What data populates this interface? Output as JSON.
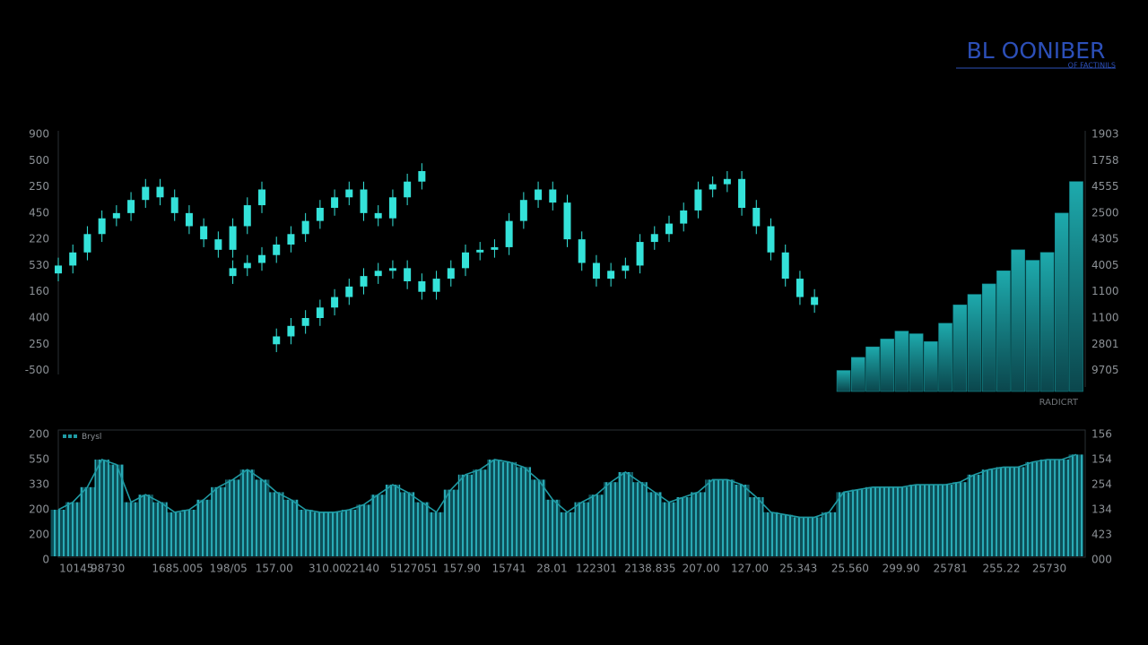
{
  "header": {
    "logo": "BL OONIBER",
    "tagline": "OF FACTINILS"
  },
  "chart_data": [
    {
      "type": "candlestick",
      "color": "#34e2d9",
      "annotation": "RADICRT",
      "xlim": [
        0,
        140
      ],
      "ylim": [
        -0.8,
        9
      ],
      "y2lim": [
        -0.8,
        9
      ],
      "yticks": [
        {
          "value": 9,
          "label": "900"
        },
        {
          "value": 8,
          "label": "500"
        },
        {
          "value": 7,
          "label": "250"
        },
        {
          "value": 6,
          "label": "450"
        },
        {
          "value": 5,
          "label": "220"
        },
        {
          "value": 4,
          "label": "530"
        },
        {
          "value": 3,
          "label": "160"
        },
        {
          "value": 2,
          "label": "400"
        },
        {
          "value": 1,
          "label": "250"
        },
        {
          "value": 0,
          "label": "-500"
        }
      ],
      "y2ticks": [
        {
          "value": 9,
          "label": "1903"
        },
        {
          "value": 8,
          "label": "1758"
        },
        {
          "value": 7,
          "label": "4555"
        },
        {
          "value": 6,
          "label": "2500"
        },
        {
          "value": 5,
          "label": "4305"
        },
        {
          "value": 4,
          "label": "4005"
        },
        {
          "value": 3,
          "label": "1100"
        },
        {
          "value": 2,
          "label": "1100"
        },
        {
          "value": 1,
          "label": "2801"
        },
        {
          "value": 0,
          "label": "9705"
        }
      ],
      "bars": {
        "color": "#138a90",
        "x": [
          108,
          110,
          112,
          114,
          116,
          118,
          120,
          122,
          124,
          126,
          128,
          130,
          132,
          134,
          136,
          138,
          140
        ],
        "values": [
          0.0,
          0.5,
          0.9,
          1.2,
          1.5,
          1.4,
          1.1,
          1.8,
          2.5,
          2.9,
          3.3,
          3.8,
          4.6,
          4.2,
          4.5,
          6.0,
          7.2
        ]
      },
      "series": [
        {
          "x": [
            0,
            2,
            4,
            6,
            8,
            10,
            12,
            14,
            16,
            18,
            20,
            22,
            24,
            26,
            28
          ],
          "open": [
            3.7,
            4.0,
            4.5,
            5.2,
            5.8,
            6.0,
            6.5,
            7.0,
            6.6,
            6.0,
            5.5,
            5.0,
            4.6,
            5.5,
            6.3
          ],
          "high": [
            4.3,
            4.8,
            5.5,
            6.1,
            6.3,
            6.8,
            7.3,
            7.3,
            6.9,
            6.3,
            5.8,
            5.3,
            5.8,
            6.6,
            7.2
          ],
          "low": [
            3.4,
            3.7,
            4.2,
            4.9,
            5.5,
            5.7,
            6.2,
            6.3,
            5.7,
            5.2,
            4.7,
            4.3,
            4.3,
            5.2,
            6.0
          ],
          "close": [
            4.0,
            4.5,
            5.2,
            5.8,
            6.0,
            6.5,
            7.0,
            6.6,
            6.0,
            5.5,
            5.0,
            4.6,
            5.5,
            6.3,
            6.9
          ]
        },
        {
          "x": [
            24,
            26,
            28,
            30,
            32,
            34,
            36,
            38,
            40,
            42,
            44,
            46,
            48,
            50
          ],
          "open": [
            3.6,
            3.9,
            4.1,
            4.4,
            4.8,
            5.2,
            5.7,
            6.2,
            6.6,
            6.9,
            6.0,
            5.8,
            6.6,
            7.2
          ],
          "high": [
            4.2,
            4.4,
            4.7,
            5.1,
            5.5,
            6.0,
            6.5,
            6.9,
            7.2,
            7.2,
            6.3,
            6.9,
            7.5,
            7.9
          ],
          "low": [
            3.3,
            3.6,
            3.8,
            4.1,
            4.5,
            4.9,
            5.4,
            5.9,
            6.3,
            5.7,
            5.5,
            5.5,
            6.3,
            6.9
          ],
          "close": [
            3.9,
            4.1,
            4.4,
            4.8,
            5.2,
            5.7,
            6.2,
            6.6,
            6.9,
            6.0,
            5.8,
            6.6,
            7.2,
            7.6
          ]
        },
        {
          "x": [
            30,
            32,
            34,
            36,
            38,
            40,
            42,
            44,
            46,
            48,
            50,
            52,
            54,
            56,
            58,
            60,
            62,
            64,
            66,
            68,
            70,
            72,
            74,
            76,
            78,
            80,
            82,
            84,
            86,
            88,
            90,
            92,
            94,
            96,
            98,
            100,
            102,
            104
          ],
          "open": [
            1.0,
            1.3,
            1.7,
            2.0,
            2.4,
            2.8,
            3.2,
            3.6,
            3.8,
            3.9,
            3.4,
            3.0,
            3.5,
            3.9,
            4.5,
            4.6,
            4.7,
            5.7,
            6.5,
            6.9,
            6.4,
            5.0,
            4.1,
            3.5,
            3.8,
            4.0,
            4.9,
            5.2,
            5.6,
            6.1,
            6.9,
            7.1,
            7.3,
            6.2,
            5.5,
            4.5,
            3.5,
            2.8
          ],
          "high": [
            1.6,
            2.0,
            2.3,
            2.7,
            3.1,
            3.5,
            3.9,
            4.1,
            4.2,
            4.2,
            3.7,
            3.8,
            4.2,
            4.8,
            4.9,
            5.0,
            6.0,
            6.8,
            7.2,
            7.2,
            6.7,
            5.3,
            4.4,
            4.1,
            4.3,
            5.2,
            5.5,
            5.9,
            6.4,
            7.2,
            7.4,
            7.6,
            7.6,
            6.5,
            5.8,
            4.8,
            3.8,
            3.1
          ],
          "low": [
            0.7,
            1.0,
            1.4,
            1.7,
            2.1,
            2.5,
            2.9,
            3.3,
            3.5,
            3.1,
            2.7,
            2.7,
            3.2,
            3.6,
            4.2,
            4.3,
            4.4,
            5.4,
            6.2,
            6.1,
            4.7,
            3.8,
            3.2,
            3.2,
            3.5,
            3.7,
            4.6,
            4.9,
            5.3,
            5.8,
            6.6,
            6.8,
            5.9,
            5.2,
            4.2,
            3.2,
            2.5,
            2.2
          ],
          "close": [
            1.3,
            1.7,
            2.0,
            2.4,
            2.8,
            3.2,
            3.6,
            3.8,
            3.9,
            3.4,
            3.0,
            3.5,
            3.9,
            4.5,
            4.6,
            4.7,
            5.7,
            6.5,
            6.9,
            6.4,
            5.0,
            4.1,
            3.5,
            3.8,
            4.0,
            4.9,
            5.2,
            5.6,
            6.1,
            6.9,
            7.1,
            7.3,
            6.2,
            5.5,
            4.5,
            3.5,
            2.8,
            2.5
          ]
        }
      ]
    },
    {
      "type": "bar",
      "xlim": [
        0,
        140
      ],
      "ylim": [
        0,
        5
      ],
      "y2lim": [
        0,
        5
      ],
      "yticks": [
        {
          "value": 5,
          "label": "200"
        },
        {
          "value": 4,
          "label": "550"
        },
        {
          "value": 3,
          "label": "330"
        },
        {
          "value": 2,
          "label": "200"
        },
        {
          "value": 1,
          "label": "200"
        },
        0
      ],
      "y2ticks": [
        {
          "value": 5,
          "label": "156"
        },
        {
          "value": 4,
          "label": "154"
        },
        {
          "value": 3,
          "label": "254"
        },
        {
          "value": 2,
          "label": "134"
        },
        {
          "value": 1,
          "label": "423"
        },
        {
          "value": 0,
          "label": "000"
        }
      ],
      "xticks": [
        {
          "value": 2.5,
          "label": "10145"
        },
        {
          "value": 6.8,
          "label": "98730"
        },
        {
          "value": 16.4,
          "label": "1685.005"
        },
        {
          "value": 23.4,
          "label": "198/05"
        },
        {
          "value": 29.7,
          "label": "157.00"
        },
        {
          "value": 37.0,
          "label": "310.00"
        },
        {
          "value": 41.8,
          "label": "22140"
        },
        {
          "value": 48.9,
          "label": "5127051"
        },
        {
          "value": 55.5,
          "label": "157.90"
        },
        {
          "value": 62.0,
          "label": "15741"
        },
        {
          "value": 67.9,
          "label": "28.01"
        },
        {
          "value": 74.0,
          "label": "122301"
        },
        {
          "value": 81.4,
          "label": "2138.835"
        },
        {
          "value": 88.4,
          "label": "207.00"
        },
        {
          "value": 95.1,
          "label": "127.00"
        },
        {
          "value": 101.8,
          "label": "25.343"
        },
        {
          "value": 108.9,
          "label": "25.560"
        },
        {
          "value": 115.9,
          "label": "299.90"
        },
        {
          "value": 122.7,
          "label": "25781"
        },
        {
          "value": 129.7,
          "label": "255.22"
        },
        {
          "value": 136.3,
          "label": "25730"
        }
      ],
      "series": [
        {
          "name": "Brysl",
          "color": "#1f9aa3",
          "x": [
            0,
            2,
            4,
            6,
            8,
            10,
            12,
            14,
            16,
            18,
            20,
            22,
            24,
            26,
            28,
            30,
            32,
            34,
            36,
            38,
            40,
            42,
            44,
            46,
            48,
            50,
            52,
            54,
            56,
            58,
            60,
            62,
            64,
            66,
            68,
            70,
            72,
            74,
            76,
            78,
            80,
            82,
            84,
            86,
            88,
            90,
            92,
            94,
            96,
            98,
            100,
            102,
            104,
            106,
            108,
            110,
            112,
            114,
            116,
            118,
            120,
            122,
            124,
            126,
            128,
            130,
            132,
            134,
            136,
            138,
            140
          ],
          "values": [
            2.0,
            2.3,
            2.9,
            4.0,
            3.8,
            2.3,
            2.6,
            2.3,
            1.9,
            2.0,
            2.4,
            2.9,
            3.2,
            3.6,
            3.2,
            2.7,
            2.4,
            2.0,
            1.9,
            1.9,
            2.0,
            2.2,
            2.6,
            3.0,
            2.7,
            2.3,
            1.9,
            2.8,
            3.4,
            3.6,
            4.0,
            3.9,
            3.7,
            3.2,
            2.4,
            1.9,
            2.3,
            2.6,
            3.1,
            3.5,
            3.1,
            2.7,
            2.3,
            2.5,
            2.7,
            3.2,
            3.2,
            3.0,
            2.5,
            1.9,
            1.8,
            1.7,
            1.7,
            1.9,
            2.7,
            2.8,
            2.9,
            2.9,
            2.9,
            3.0,
            3.0,
            3.0,
            3.1,
            3.4,
            3.6,
            3.7,
            3.7,
            3.9,
            4.0,
            4.0,
            4.2
          ]
        }
      ]
    }
  ]
}
